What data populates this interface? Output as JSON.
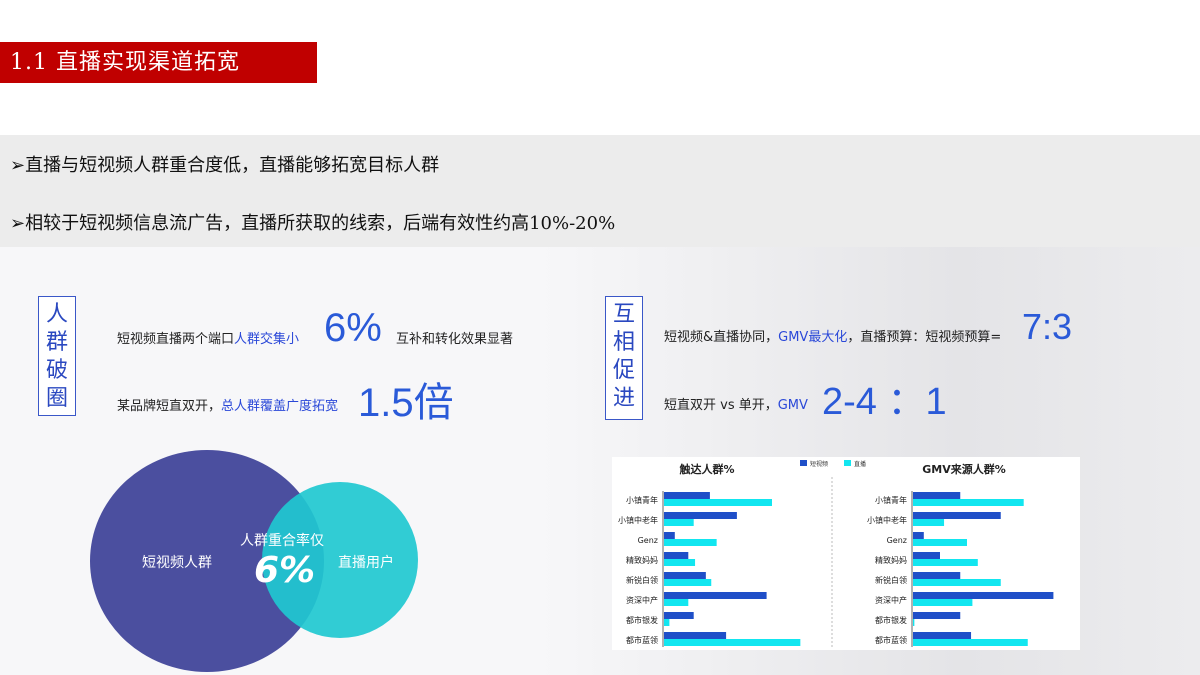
{
  "title": "1.1 直播实现渠道拓宽",
  "bullets": [
    "➢直播与短视频人群重合度低，直播能够拓宽目标人群",
    "➢相较于短视频信息流广告，直播所获取的线索，后端有效性约高10%-20%"
  ],
  "left": {
    "label": "人群破圈",
    "line1_a": "短视频直播两个端口",
    "line1_b": "人群交集小",
    "line1_big": "6%",
    "line1_c": "互补和转化效果显著",
    "line2_a": "某品牌短直双开，",
    "line2_b": "总人群覆盖广度拓宽",
    "line2_big": "1.5倍"
  },
  "right": {
    "label": "互相促进",
    "line1_a": "短视频&直播协同，",
    "line1_b": "GMV最大化",
    "line1_c": "，直播预算：短视频预算=",
    "line1_big": "7:3",
    "line2_a": "短直双开 vs 单开，",
    "line2_b": "GMV",
    "line2_big": "2-4 ：1"
  },
  "venn": {
    "left": "短视频人群",
    "right": "直播用户",
    "overlap_label": "人群重合率仅",
    "overlap_value": "6%",
    "colors": {
      "left": "#4b4f9f",
      "right": "#20c8d0"
    }
  },
  "chart_data": [
    {
      "type": "bar",
      "orientation": "horizontal",
      "title": "触达人群%",
      "categories": [
        "小镇青年",
        "小镇中老年",
        "Genz",
        "精致妈妈",
        "新锐白领",
        "资深中产",
        "都市银发",
        "都市蓝领"
      ],
      "series": [
        {
          "name": "短视频",
          "color": "#1f4fc8",
          "values": [
            34,
            54,
            8,
            18,
            31,
            76,
            22,
            46
          ]
        },
        {
          "name": "直播",
          "color": "#12e6f0",
          "values": [
            80,
            22,
            39,
            23,
            35,
            18,
            4,
            101
          ]
        }
      ],
      "legend": "top"
    },
    {
      "type": "bar",
      "orientation": "horizontal",
      "title": "GMV来源人群%",
      "categories": [
        "小镇青年",
        "小镇中老年",
        "Genz",
        "精致妈妈",
        "新锐白领",
        "资深中产",
        "都市银发",
        "都市蓝领"
      ],
      "series": [
        {
          "name": "短视频",
          "color": "#1f4fc8",
          "values": [
            35,
            65,
            8,
            20,
            35,
            104,
            35,
            43
          ]
        },
        {
          "name": "直播",
          "color": "#12e6f0",
          "values": [
            82,
            23,
            40,
            48,
            65,
            44,
            1,
            85
          ]
        }
      ]
    }
  ]
}
